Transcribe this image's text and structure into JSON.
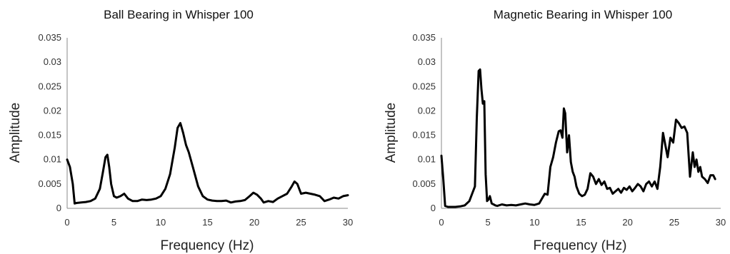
{
  "chart_data": [
    {
      "type": "line",
      "title": "Ball Bearing in Whisper 100",
      "xlabel": "Frequency (Hz)",
      "ylabel": "Amplitude",
      "xlim": [
        0,
        30
      ],
      "ylim": [
        0,
        0.035
      ],
      "xticks": [
        "0",
        "5",
        "10",
        "15",
        "20",
        "25",
        "30"
      ],
      "yticks": [
        "0",
        "0.005",
        "0.01",
        "0.015",
        "0.02",
        "0.025",
        "0.03",
        "0.035"
      ],
      "grid": false,
      "legend": "none",
      "series": [
        {
          "x": [
            0,
            0.3,
            0.6,
            0.8,
            1.0,
            1.5,
            2.0,
            2.5,
            3.0,
            3.5,
            3.8,
            4.1,
            4.3,
            4.5,
            4.7,
            5.0,
            5.3,
            5.7,
            6.1,
            6.5,
            7.0,
            7.5,
            8.0,
            8.5,
            9.0,
            9.5,
            10.0,
            10.5,
            11.0,
            11.5,
            11.8,
            12.1,
            12.4,
            12.7,
            13.0,
            13.5,
            14.0,
            14.5,
            15.0,
            15.5,
            16.0,
            16.5,
            17.0,
            17.5,
            18.0,
            18.5,
            19.0,
            19.5,
            19.9,
            20.3,
            20.7,
            21.0,
            21.5,
            22.0,
            22.5,
            23.0,
            23.5,
            24.0,
            24.3,
            24.6,
            25.0,
            25.5,
            26.0,
            26.5,
            27.0,
            27.5,
            28.0,
            28.5,
            29.0,
            29.5,
            30.0
          ],
          "y": [
            0.01,
            0.0085,
            0.005,
            0.001,
            0.0011,
            0.0012,
            0.0013,
            0.0015,
            0.002,
            0.004,
            0.0072,
            0.0105,
            0.011,
            0.0085,
            0.005,
            0.0025,
            0.0022,
            0.0025,
            0.003,
            0.002,
            0.0015,
            0.0015,
            0.0018,
            0.0017,
            0.0018,
            0.002,
            0.0025,
            0.004,
            0.007,
            0.0125,
            0.0165,
            0.0175,
            0.0155,
            0.013,
            0.0115,
            0.008,
            0.0045,
            0.0025,
            0.0018,
            0.0016,
            0.0015,
            0.0015,
            0.0016,
            0.0012,
            0.0014,
            0.0015,
            0.0017,
            0.0025,
            0.0032,
            0.0028,
            0.002,
            0.0012,
            0.0015,
            0.0013,
            0.002,
            0.0025,
            0.003,
            0.0045,
            0.0055,
            0.005,
            0.003,
            0.0032,
            0.003,
            0.0028,
            0.0025,
            0.0015,
            0.0018,
            0.0022,
            0.002,
            0.0025,
            0.0027
          ]
        }
      ]
    },
    {
      "type": "line",
      "title": "Magnetic Bearing in Whisper 100",
      "xlabel": "Frequency (Hz)",
      "ylabel": "Amplitude",
      "xlim": [
        0,
        30
      ],
      "ylim": [
        0,
        0.035
      ],
      "xticks": [
        "0",
        "5",
        "10",
        "15",
        "20",
        "25",
        "30"
      ],
      "yticks": [
        "0",
        "0.005",
        "0.01",
        "0.015",
        "0.02",
        "0.025",
        "0.03",
        "0.035"
      ],
      "grid": false,
      "legend": "none",
      "series": [
        {
          "x": [
            0,
            0.2,
            0.4,
            0.7,
            1.0,
            1.5,
            2.0,
            2.5,
            3.0,
            3.3,
            3.6,
            3.8,
            4.0,
            4.15,
            4.3,
            4.45,
            4.6,
            4.75,
            4.9,
            5.05,
            5.2,
            5.4,
            5.6,
            5.8,
            6.0,
            6.5,
            7.0,
            7.5,
            8.0,
            8.5,
            9.0,
            9.5,
            10.0,
            10.5,
            10.8,
            11.1,
            11.4,
            11.7,
            12.0,
            12.3,
            12.6,
            12.8,
            13.0,
            13.15,
            13.3,
            13.5,
            13.7,
            13.9,
            14.1,
            14.3,
            14.5,
            14.8,
            15.1,
            15.4,
            15.7,
            16.0,
            16.3,
            16.6,
            16.9,
            17.2,
            17.5,
            17.8,
            18.1,
            18.4,
            18.7,
            19.0,
            19.3,
            19.6,
            19.9,
            20.2,
            20.5,
            20.8,
            21.1,
            21.4,
            21.7,
            22.0,
            22.3,
            22.6,
            22.9,
            23.2,
            23.5,
            23.8,
            24.0,
            24.3,
            24.6,
            24.9,
            25.2,
            25.5,
            25.8,
            26.1,
            26.4,
            26.7,
            27.0,
            27.2,
            27.4,
            27.6,
            27.8,
            28.0,
            28.3,
            28.6,
            28.9,
            29.2,
            29.4
          ],
          "y": [
            0.0108,
            0.006,
            0.0005,
            0.0003,
            0.0003,
            0.0003,
            0.0004,
            0.0006,
            0.0015,
            0.003,
            0.0045,
            0.0185,
            0.0282,
            0.0285,
            0.0245,
            0.0215,
            0.022,
            0.007,
            0.0015,
            0.0018,
            0.0025,
            0.001,
            0.0008,
            0.0006,
            0.0005,
            0.0008,
            0.0006,
            0.0007,
            0.0006,
            0.0008,
            0.001,
            0.0008,
            0.0007,
            0.001,
            0.002,
            0.003,
            0.0028,
            0.0085,
            0.0105,
            0.0135,
            0.0158,
            0.016,
            0.0145,
            0.0205,
            0.0195,
            0.0115,
            0.015,
            0.0095,
            0.0075,
            0.0065,
            0.0045,
            0.003,
            0.0025,
            0.0028,
            0.004,
            0.0072,
            0.0065,
            0.005,
            0.006,
            0.0048,
            0.0055,
            0.004,
            0.0042,
            0.003,
            0.0035,
            0.004,
            0.0032,
            0.0042,
            0.0038,
            0.0045,
            0.0035,
            0.0042,
            0.005,
            0.0045,
            0.0035,
            0.005,
            0.0055,
            0.0045,
            0.0055,
            0.004,
            0.0085,
            0.0155,
            0.0135,
            0.0105,
            0.0145,
            0.0135,
            0.0182,
            0.0175,
            0.0165,
            0.0168,
            0.0155,
            0.0065,
            0.0115,
            0.0085,
            0.01,
            0.0075,
            0.0085,
            0.0065,
            0.006,
            0.0052,
            0.0068,
            0.0068,
            0.006
          ]
        }
      ]
    }
  ]
}
